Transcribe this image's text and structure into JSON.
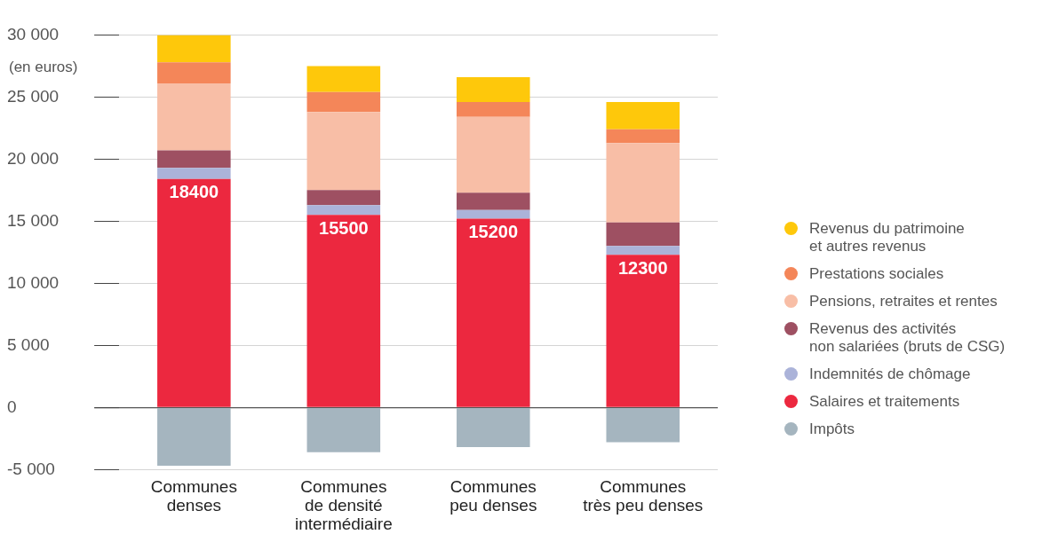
{
  "chart_data": {
    "type": "bar",
    "ylabel": "(en euros)",
    "stacked": true,
    "categories": [
      "Communes\ndenses",
      "Communes\nde densité\nintermédiaire",
      "Communes\npeu denses",
      "Communes\ntrès peu denses"
    ],
    "series": [
      {
        "name": "Impôts",
        "color": "#a5b5bf",
        "values": [
          -4700,
          -3600,
          -3200,
          -2800
        ]
      },
      {
        "name": "Salaires et traitements",
        "color": "#ec283f",
        "values": [
          18400,
          15500,
          15200,
          12300
        ],
        "value_labels": [
          "18400",
          "15500",
          "15200",
          "12300"
        ]
      },
      {
        "name": "Indemnités de chômage",
        "color": "#abb3d9",
        "values": [
          900,
          800,
          700,
          700
        ]
      },
      {
        "name": "Revenus des activités\nnon salariées (bruts de CSG)",
        "color": "#9e5062",
        "values": [
          1400,
          1200,
          1400,
          1900
        ]
      },
      {
        "name": "Pensions, retraites et rentes",
        "color": "#f8bea6",
        "values": [
          5400,
          6300,
          6100,
          6400
        ]
      },
      {
        "name": "Prestations sociales",
        "color": "#f48659",
        "values": [
          1700,
          1600,
          1200,
          1100
        ]
      },
      {
        "name": "Revenus du patrimoine\net autres revenus",
        "color": "#fec80b",
        "values": [
          2200,
          2100,
          2000,
          2200
        ]
      }
    ],
    "ylim": [
      -5000,
      30000
    ],
    "yticks": [
      {
        "value": -5000,
        "label": "-5 000"
      },
      {
        "value": 0,
        "label": "0"
      },
      {
        "value": 5000,
        "label": "5 000"
      },
      {
        "value": 10000,
        "label": "10 000"
      },
      {
        "value": 15000,
        "label": "15 000"
      },
      {
        "value": 20000,
        "label": "20 000"
      },
      {
        "value": 25000,
        "label": "25 000"
      },
      {
        "value": 30000,
        "label": "30 000"
      }
    ],
    "grid": "y",
    "legend": "right"
  }
}
